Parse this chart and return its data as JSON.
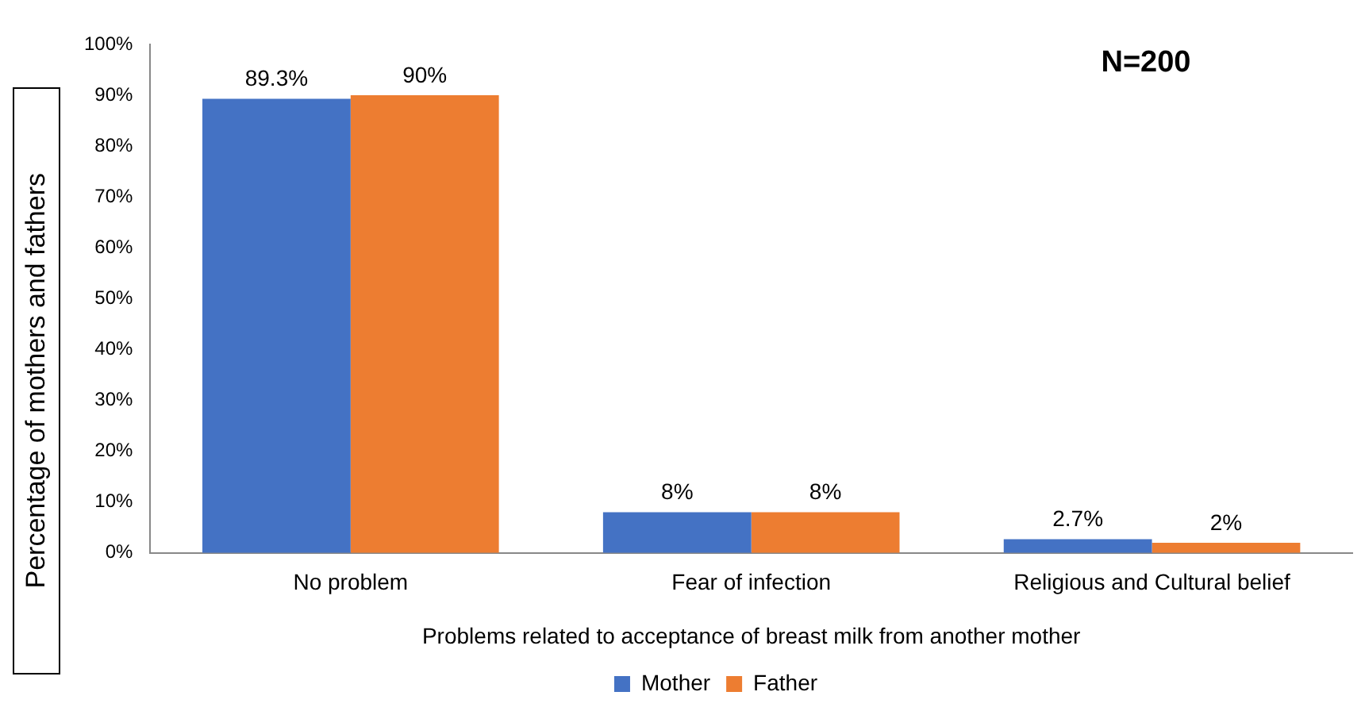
{
  "chart_data": {
    "type": "bar",
    "ylabel": "Percentage of mothers and fathers",
    "xlabel": "Problems related to acceptance of breast milk from another mother",
    "categories": [
      "No problem",
      "Fear of infection",
      "Religious and Cultural belief"
    ],
    "series": [
      {
        "name": "Mother",
        "color": "#4472c4",
        "values": [
          89.3,
          8,
          2.7
        ],
        "value_labels": [
          "89.3%",
          "8%",
          "2.7%"
        ]
      },
      {
        "name": "Father",
        "color": "#ed7d31",
        "values": [
          90,
          8,
          2
        ],
        "value_labels": [
          "90%",
          "8%",
          "2%"
        ]
      }
    ],
    "ylim": [
      0,
      100
    ],
    "yticks": [
      {
        "value": 0,
        "label": "0%"
      },
      {
        "value": 10,
        "label": "10%"
      },
      {
        "value": 20,
        "label": "20%"
      },
      {
        "value": 30,
        "label": "30%"
      },
      {
        "value": 40,
        "label": "40%"
      },
      {
        "value": 50,
        "label": "50%"
      },
      {
        "value": 60,
        "label": "60%"
      },
      {
        "value": 70,
        "label": "70%"
      },
      {
        "value": 80,
        "label": "80%"
      },
      {
        "value": 90,
        "label": "90%"
      },
      {
        "value": 100,
        "label": "100%"
      }
    ],
    "grid": false,
    "legend": "bottom",
    "annotations": [
      "N=200"
    ]
  }
}
